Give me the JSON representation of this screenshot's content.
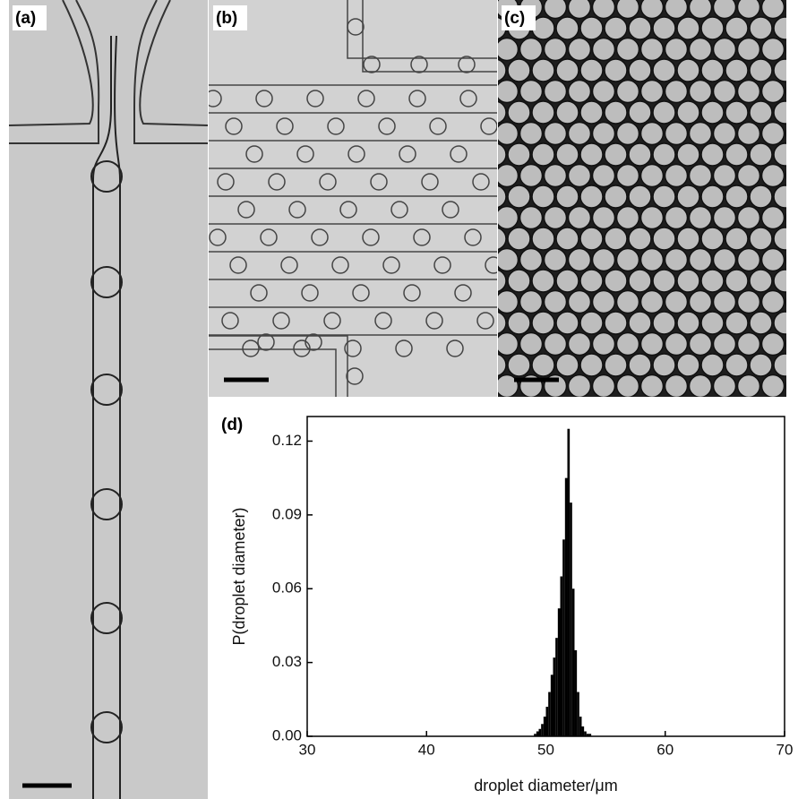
{
  "panels": [
    {
      "label": "(a)"
    },
    {
      "label": "(b)"
    },
    {
      "label": "(c)"
    }
  ],
  "chart_data": {
    "type": "histogram",
    "label": "(d)",
    "x_label": "droplet diameter/μm",
    "y_label": "P(droplet diameter)",
    "bins": [
      49.0,
      49.2,
      49.4,
      49.6,
      49.8,
      50.0,
      50.2,
      50.4,
      50.6,
      50.8,
      51.0,
      51.2,
      51.4,
      51.6,
      51.8,
      52.0,
      52.2,
      52.4,
      52.6,
      52.8,
      53.0,
      53.2,
      53.4,
      53.6,
      53.8,
      54.0
    ],
    "values": [
      0.001,
      0.002,
      0.003,
      0.005,
      0.008,
      0.012,
      0.018,
      0.025,
      0.032,
      0.04,
      0.052,
      0.065,
      0.08,
      0.105,
      0.125,
      0.095,
      0.06,
      0.035,
      0.018,
      0.008,
      0.004,
      0.002,
      0.001,
      0.001,
      0.0
    ],
    "color": "#000000",
    "xlim": [
      30,
      70
    ],
    "xticks": [
      30,
      40,
      50,
      60,
      70
    ],
    "ylim": [
      0,
      0.13
    ],
    "yticks": [
      {
        "value": 0,
        "label": "0.00"
      },
      0.03,
      0.06,
      0.09,
      0.12
    ]
  }
}
